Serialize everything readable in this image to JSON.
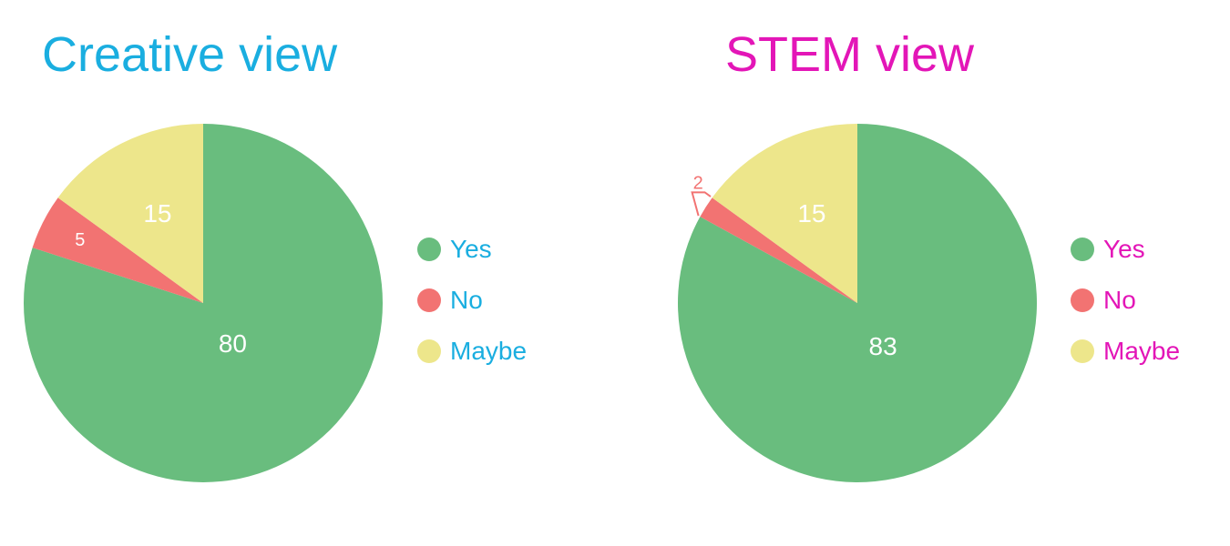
{
  "chart_data": [
    {
      "type": "pie",
      "title": "Creative view",
      "title_color": "#1aaee0",
      "categories": [
        "Yes",
        "No",
        "Maybe"
      ],
      "values": [
        80,
        5,
        15
      ],
      "colors": [
        "#69bd7e",
        "#f27372",
        "#ede68b"
      ],
      "legend_position": "right"
    },
    {
      "type": "pie",
      "title": "STEM view",
      "title_color": "#e316b7",
      "categories": [
        "Yes",
        "No",
        "Maybe"
      ],
      "values": [
        83,
        2,
        15
      ],
      "colors": [
        "#69bd7e",
        "#f27372",
        "#ede68b"
      ],
      "legend_position": "right"
    }
  ]
}
